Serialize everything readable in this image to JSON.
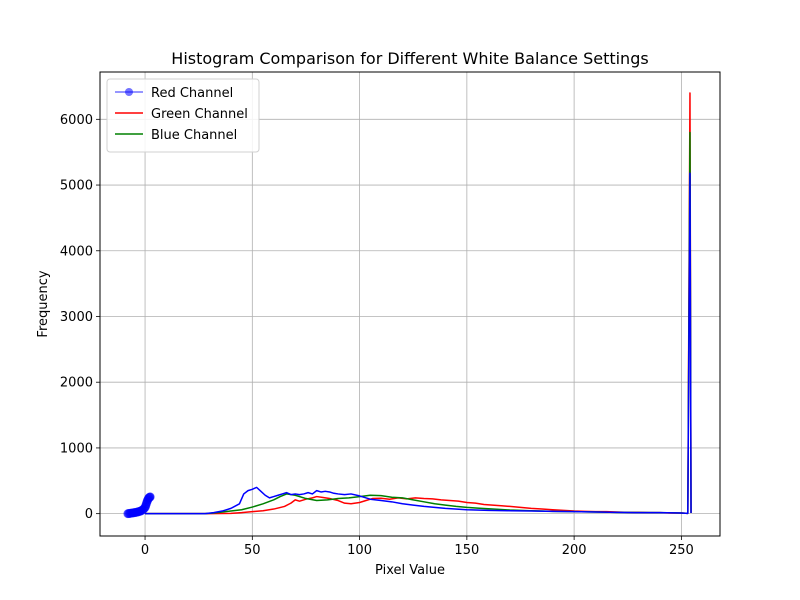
{
  "chart_data": {
    "type": "line",
    "title": "Histogram Comparison for Different White Balance Settings",
    "xlabel": "Pixel Value",
    "ylabel": "Frequency",
    "xlim": [
      -21,
      268
    ],
    "ylim": [
      -340,
      6720
    ],
    "xticks": [
      0,
      50,
      100,
      150,
      200,
      250
    ],
    "yticks": [
      0,
      1000,
      2000,
      3000,
      4000,
      5000,
      6000
    ],
    "grid": true,
    "legend_position": "top-left",
    "series": [
      {
        "name": "Red Channel",
        "color": "#0000ff",
        "marker": "circle",
        "alpha": 0.55,
        "x": [
          -8,
          -7.5,
          -7,
          -6.5,
          -6,
          -5.5,
          -5,
          -4.5,
          -4,
          -3.5,
          -3,
          -2.5,
          -2,
          -1.5,
          -1,
          -0.5,
          0,
          0.3,
          0.6,
          0.9,
          1.2,
          1.5,
          1.8,
          2.1,
          2.4
        ],
        "y": [
          0,
          2,
          5,
          8,
          10,
          12,
          15,
          18,
          22,
          25,
          30,
          35,
          40,
          50,
          60,
          75,
          95,
          120,
          150,
          180,
          205,
          225,
          240,
          250,
          255
        ]
      },
      {
        "name": "Green Channel",
        "color": "#ff0000",
        "x": [
          0,
          30,
          40,
          45,
          50,
          55,
          60,
          65,
          68,
          70,
          72,
          75,
          78,
          80,
          83,
          86,
          90,
          93,
          96,
          100,
          103,
          106,
          110,
          114,
          118,
          122,
          126,
          130,
          134,
          138,
          142,
          146,
          150,
          154,
          158,
          162,
          166,
          170,
          175,
          180,
          185,
          190,
          195,
          200,
          205,
          210,
          215,
          220,
          225,
          230,
          235,
          240,
          245,
          250,
          253,
          254,
          254.5
        ],
        "y": [
          0,
          0,
          5,
          15,
          30,
          45,
          70,
          110,
          160,
          210,
          190,
          220,
          240,
          260,
          245,
          230,
          200,
          160,
          150,
          170,
          200,
          230,
          235,
          220,
          240,
          225,
          240,
          230,
          225,
          210,
          200,
          190,
          170,
          160,
          140,
          130,
          120,
          110,
          95,
          80,
          70,
          60,
          50,
          40,
          35,
          30,
          30,
          25,
          20,
          20,
          15,
          15,
          10,
          10,
          5,
          6400,
          10
        ]
      },
      {
        "name": "Blue Channel",
        "color": "#008000",
        "x": [
          0,
          28,
          32,
          36,
          40,
          45,
          50,
          55,
          60,
          63,
          66,
          70,
          75,
          80,
          85,
          90,
          95,
          100,
          105,
          110,
          115,
          120,
          125,
          130,
          135,
          140,
          145,
          150,
          155,
          160,
          165,
          170,
          175,
          180,
          185,
          190,
          200,
          210,
          220,
          230,
          240,
          250,
          253,
          254,
          254.5
        ],
        "y": [
          0,
          0,
          10,
          25,
          40,
          60,
          100,
          150,
          210,
          260,
          300,
          280,
          230,
          200,
          210,
          230,
          240,
          260,
          280,
          275,
          250,
          240,
          210,
          180,
          150,
          130,
          110,
          95,
          85,
          75,
          65,
          55,
          50,
          45,
          40,
          35,
          30,
          25,
          20,
          18,
          15,
          10,
          5,
          5800,
          10
        ]
      },
      {
        "name": "",
        "color": "#0000ff",
        "x": [
          0,
          28,
          32,
          36,
          40,
          44,
          46,
          48,
          50,
          52,
          54,
          56,
          58,
          60,
          62,
          64,
          66,
          68,
          70,
          72,
          74,
          76,
          78,
          80,
          82,
          84,
          86,
          88,
          90,
          93,
          96,
          100,
          105,
          110,
          115,
          120,
          125,
          130,
          140,
          150,
          160,
          170,
          180,
          190,
          200,
          210,
          220,
          230,
          240,
          250,
          253,
          254,
          254.5
        ],
        "y": [
          0,
          0,
          15,
          40,
          80,
          150,
          300,
          350,
          370,
          400,
          340,
          280,
          240,
          260,
          280,
          300,
          320,
          290,
          300,
          290,
          300,
          320,
          300,
          350,
          330,
          340,
          330,
          310,
          300,
          290,
          300,
          270,
          220,
          200,
          180,
          150,
          130,
          110,
          80,
          60,
          50,
          45,
          40,
          35,
          30,
          25,
          20,
          15,
          15,
          10,
          5,
          5180,
          10
        ]
      }
    ]
  }
}
